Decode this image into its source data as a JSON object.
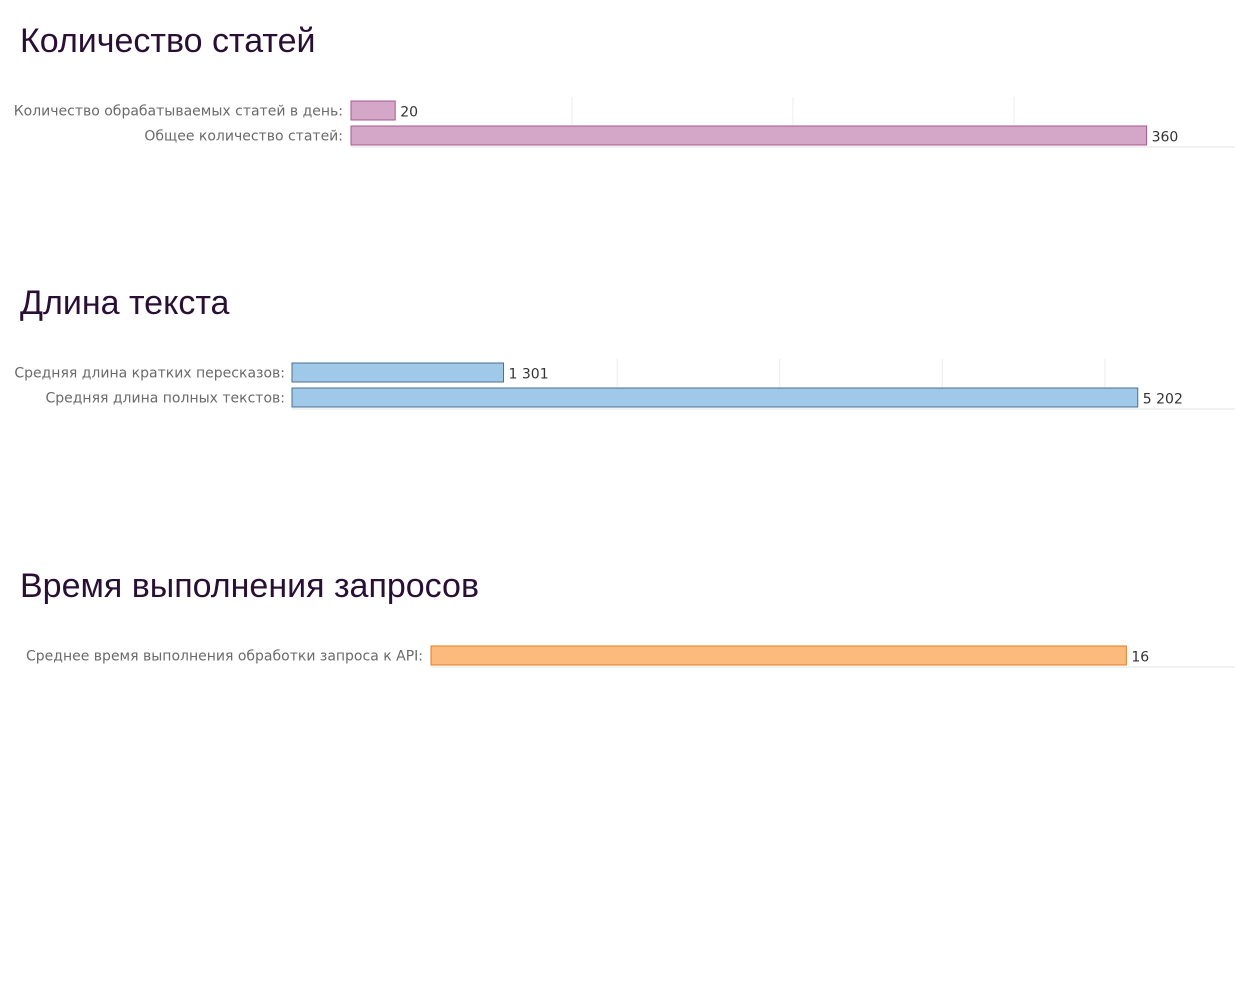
{
  "chart_data": [
    {
      "type": "bar",
      "orientation": "horizontal",
      "title": "Количество статей",
      "categories": [
        "Количество обрабатываемых статей в день:",
        "Общее количество статей:"
      ],
      "values": [
        20,
        360
      ],
      "value_labels": [
        "20",
        "360"
      ],
      "xlim": [
        0,
        400
      ],
      "gridlines": [
        100,
        200,
        300
      ],
      "grid": true,
      "color": "#d4a6c8",
      "border_color": "#a45a8e"
    },
    {
      "type": "bar",
      "orientation": "horizontal",
      "title": "Длина текста",
      "categories": [
        "Средняя длина кратких пересказов:",
        "Средняя длина полных текстов:"
      ],
      "values": [
        1301,
        5202
      ],
      "value_labels": [
        "1 301",
        "5 202"
      ],
      "xlim": [
        0,
        5800
      ],
      "gridlines": [
        2000,
        3000,
        4000,
        5000
      ],
      "grid": true,
      "color": "#a0c8e8",
      "border_color": "#4a6f8e"
    },
    {
      "type": "bar",
      "orientation": "horizontal",
      "title": "Время выполнения запросов",
      "categories": [
        "Среднее время выполнения обработки запроса к API:"
      ],
      "values": [
        16
      ],
      "value_labels": [
        "16"
      ],
      "xlim": [
        0,
        18.5
      ],
      "gridlines": [],
      "grid": false,
      "color": "#fcbb7c",
      "border_color": "#e07b20"
    }
  ]
}
